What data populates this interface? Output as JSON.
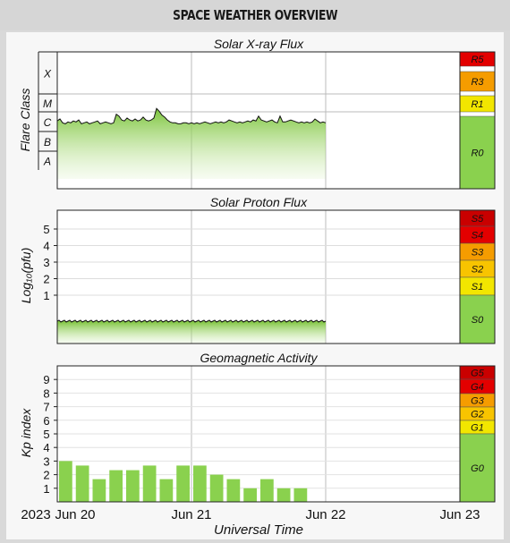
{
  "header": {
    "title": "SPACE WEATHER OVERVIEW"
  },
  "colors": {
    "green": "#8ad14e",
    "yellow": "#f2e600",
    "orange": "#f59c00",
    "red_orange": "#f04000",
    "red": "#e30000",
    "dark_red": "#c90000",
    "line": "#111111",
    "grid": "#bbbbbb"
  },
  "x_axis": {
    "title": "Universal Time",
    "year_label": "2023",
    "tick_labels": [
      "Jun 20",
      "Jun 21",
      "Jun 22",
      "Jun 23"
    ]
  },
  "chart_data": [
    {
      "type": "area",
      "title": "Solar X-ray Flux",
      "ylabel": "Flare Class",
      "y_categories": [
        "A",
        "B",
        "C",
        "M",
        "X"
      ],
      "x_range_days": [
        0,
        3
      ],
      "x": [
        0.0,
        0.02,
        0.04,
        0.06,
        0.08,
        0.1,
        0.12,
        0.14,
        0.16,
        0.18,
        0.2,
        0.22,
        0.24,
        0.26,
        0.28,
        0.3,
        0.32,
        0.34,
        0.36,
        0.38,
        0.4,
        0.42,
        0.44,
        0.46,
        0.48,
        0.5,
        0.52,
        0.54,
        0.56,
        0.58,
        0.6,
        0.62,
        0.64,
        0.66,
        0.68,
        0.7,
        0.72,
        0.74,
        0.76,
        0.78,
        0.8,
        0.82,
        0.84,
        0.86,
        0.88,
        0.9,
        0.92,
        0.94,
        0.96,
        0.98,
        1.0,
        1.02,
        1.04,
        1.06,
        1.08,
        1.1,
        1.12,
        1.14,
        1.16,
        1.18,
        1.2,
        1.22,
        1.24,
        1.26,
        1.28,
        1.3,
        1.32,
        1.34,
        1.36,
        1.38,
        1.4,
        1.42,
        1.44,
        1.46,
        1.48,
        1.5,
        1.52,
        1.54,
        1.56,
        1.58,
        1.6,
        1.62,
        1.64,
        1.66,
        1.68,
        1.7,
        1.72,
        1.74,
        1.76,
        1.78,
        1.8,
        1.82,
        1.84,
        1.86,
        1.88,
        1.9,
        1.92,
        1.94,
        1.96,
        1.98,
        2.0
      ],
      "values": [
        2.55,
        2.65,
        2.45,
        2.4,
        2.5,
        2.45,
        2.55,
        2.5,
        2.6,
        2.4,
        2.45,
        2.5,
        2.4,
        2.45,
        2.5,
        2.55,
        2.4,
        2.45,
        2.5,
        2.45,
        2.4,
        2.45,
        2.9,
        2.8,
        2.6,
        2.55,
        2.7,
        2.6,
        2.55,
        2.65,
        2.55,
        2.6,
        2.75,
        2.6,
        2.55,
        2.6,
        2.7,
        3.2,
        3.05,
        2.85,
        2.75,
        2.6,
        2.5,
        2.45,
        2.45,
        2.4,
        2.4,
        2.45,
        2.45,
        2.4,
        2.45,
        2.4,
        2.45,
        2.4,
        2.45,
        2.5,
        2.45,
        2.4,
        2.45,
        2.5,
        2.45,
        2.5,
        2.45,
        2.5,
        2.6,
        2.55,
        2.5,
        2.45,
        2.5,
        2.45,
        2.5,
        2.55,
        2.5,
        2.6,
        2.55,
        2.8,
        2.6,
        2.55,
        2.5,
        2.55,
        2.6,
        2.5,
        2.45,
        2.8,
        2.5,
        2.5,
        2.55,
        2.6,
        2.55,
        2.5,
        2.45,
        2.5,
        2.45,
        2.5,
        2.45,
        2.5,
        2.65,
        2.55,
        2.45,
        2.5,
        2.45
      ],
      "scale_levels": [
        "R0",
        "R1",
        "R3",
        "R5"
      ]
    },
    {
      "type": "area",
      "title": "Solar Proton Flux",
      "ylabel": "Log₁₀(pfu)",
      "y_ticks": [
        1,
        2,
        3,
        4,
        5
      ],
      "y_range": [
        -1.5,
        5.7
      ],
      "x_range_days": [
        0,
        3
      ],
      "x": [
        0.0,
        2.0
      ],
      "values": [
        -0.5,
        -0.5
      ],
      "scale_levels": [
        "S0",
        "S1",
        "S2",
        "S3",
        "S4",
        "S5"
      ]
    },
    {
      "type": "bar",
      "title": "Geomagnetic Activity",
      "ylabel": "Kp index",
      "y_ticks": [
        1,
        2,
        3,
        4,
        5,
        6,
        7,
        8,
        9
      ],
      "ylim": [
        0,
        10
      ],
      "bar_width_days": 0.125,
      "x_range_days": [
        0,
        3
      ],
      "x": [
        0.0,
        0.125,
        0.25,
        0.375,
        0.5,
        0.625,
        0.75,
        0.875,
        1.0,
        1.125,
        1.25,
        1.375,
        1.5,
        1.625,
        1.75,
        1.875
      ],
      "values": [
        3.0,
        2.67,
        1.67,
        2.33,
        2.33,
        2.67,
        1.67,
        2.67,
        2.67,
        2.0,
        1.67,
        1.0,
        1.67,
        1.0,
        1.0,
        0
      ],
      "scale_levels": [
        "G0",
        "G1",
        "G2",
        "G3",
        "G4",
        "G5"
      ]
    }
  ]
}
